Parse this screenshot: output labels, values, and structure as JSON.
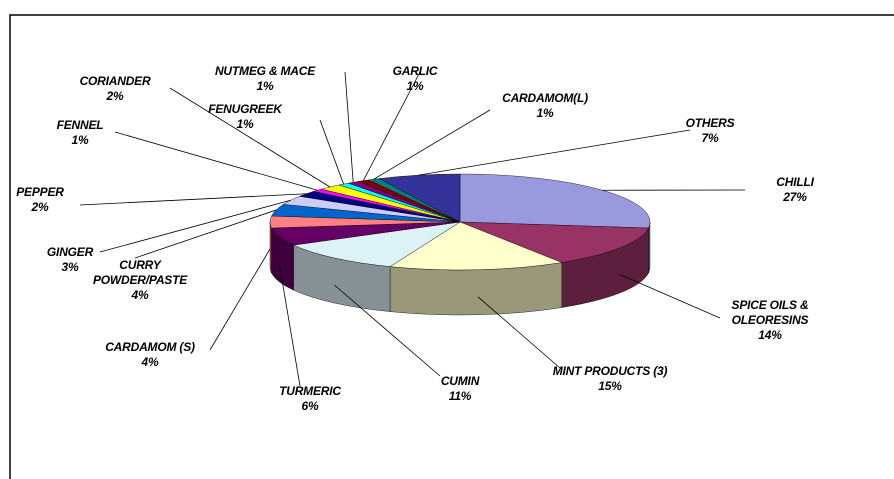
{
  "chart_data": {
    "type": "pie",
    "categories": [
      "CHILLI",
      "SPICE OILS & OLEORESINS",
      "MINT PRODUCTS (3)",
      "CUMIN",
      "TURMERIC",
      "CARDAMOM (S)",
      "CURRY POWDER/PASTE",
      "GINGER",
      "PEPPER",
      "FENNEL",
      "CORIANDER",
      "FENUGREEK",
      "NUTMEG & MACE",
      "GARLIC",
      "CARDAMOM(L)",
      "OTHERS"
    ],
    "values": [
      27,
      14,
      15,
      11,
      6,
      4,
      4,
      3,
      2,
      1,
      2,
      1,
      1,
      1,
      1,
      7
    ],
    "value_labels": [
      "27%",
      "14%",
      "15%",
      "11%",
      "6%",
      "4%",
      "4%",
      "3%",
      "2%",
      "1%",
      "2%",
      "1%",
      "1%",
      "1%",
      "1%",
      "7%"
    ],
    "colors": [
      "#9999dd",
      "#993366",
      "#ffffcc",
      "#ddf2f6",
      "#660066",
      "#ff8080",
      "#0066cc",
      "#ccccff",
      "#000080",
      "#ff00ff",
      "#ffff00",
      "#00ffff",
      "#800080",
      "#800000",
      "#008080",
      "#333399"
    ]
  }
}
